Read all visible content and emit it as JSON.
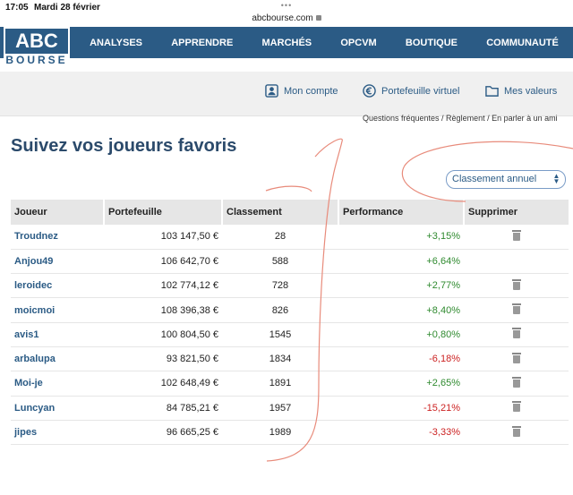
{
  "status": {
    "time": "17:05",
    "date": "Mardi 28 février",
    "url": "abcbourse.com"
  },
  "logo": {
    "top": "ABC",
    "bottom": "BOURSE"
  },
  "nav": [
    "ANALYSES",
    "APPRENDRE",
    "MARCHÉS",
    "OPCVM",
    "BOUTIQUE",
    "COMMUNAUTÉ"
  ],
  "account": {
    "mon_compte": "Mon compte",
    "portefeuille": "Portefeuille virtuel",
    "valeurs": "Mes valeurs"
  },
  "crumbs": "Questions fréquentes / Règlement / En parler à un ami",
  "title": "Suivez vos joueurs favoris",
  "select": {
    "value": "Classement annuel"
  },
  "table": {
    "headers": [
      "Joueur",
      "Portefeuille",
      "Classement",
      "Performance",
      "Supprimer"
    ],
    "rows": [
      {
        "name": "Troudnez",
        "portfolio": "103 147,50 €",
        "rank": "28",
        "perf": "+3,15%",
        "trash": true
      },
      {
        "name": "Anjou49",
        "portfolio": "106 642,70 €",
        "rank": "588",
        "perf": "+6,64%",
        "trash": false
      },
      {
        "name": "leroidec",
        "portfolio": "102 774,12 €",
        "rank": "728",
        "perf": "+2,77%",
        "trash": true
      },
      {
        "name": "moicmoi",
        "portfolio": "108 396,38 €",
        "rank": "826",
        "perf": "+8,40%",
        "trash": true
      },
      {
        "name": "avis1",
        "portfolio": "100 804,50 €",
        "rank": "1545",
        "perf": "+0,80%",
        "trash": true
      },
      {
        "name": "arbalupa",
        "portfolio": "93 821,50 €",
        "rank": "1834",
        "perf": "-6,18%",
        "trash": true
      },
      {
        "name": "Moi-je",
        "portfolio": "102 648,49 €",
        "rank": "1891",
        "perf": "+2,65%",
        "trash": true
      },
      {
        "name": "Luncyan",
        "portfolio": "84 785,21 €",
        "rank": "1957",
        "perf": "-15,21%",
        "trash": true
      },
      {
        "name": "jipes",
        "portfolio": "96 665,25 €",
        "rank": "1989",
        "perf": "-3,33%",
        "trash": true
      }
    ]
  },
  "colors": {
    "brand": "#2b5b85",
    "positive": "#2f8a2f",
    "negative": "#cc2222"
  }
}
